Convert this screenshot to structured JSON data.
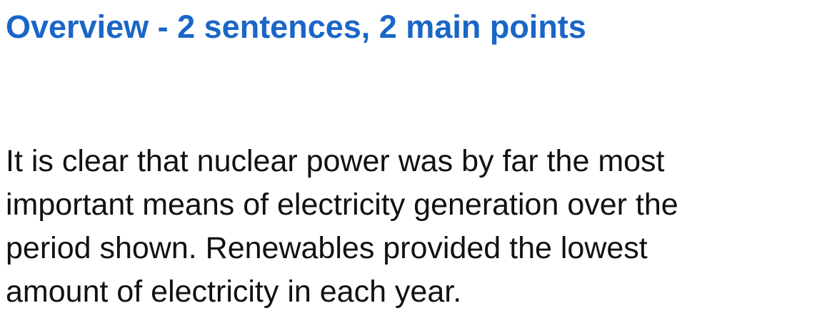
{
  "heading": "Overview - 2 sentences, 2 main points",
  "paragraph": {
    "lines": [
      "It is clear that nuclear power was by far the most",
      "important means of electricity generation over the",
      "period shown. Renewables provided the lowest",
      "amount of electricity in each year."
    ]
  },
  "colors": {
    "heading": "#1a66c7",
    "text": "#111111",
    "background": "#ffffff"
  }
}
